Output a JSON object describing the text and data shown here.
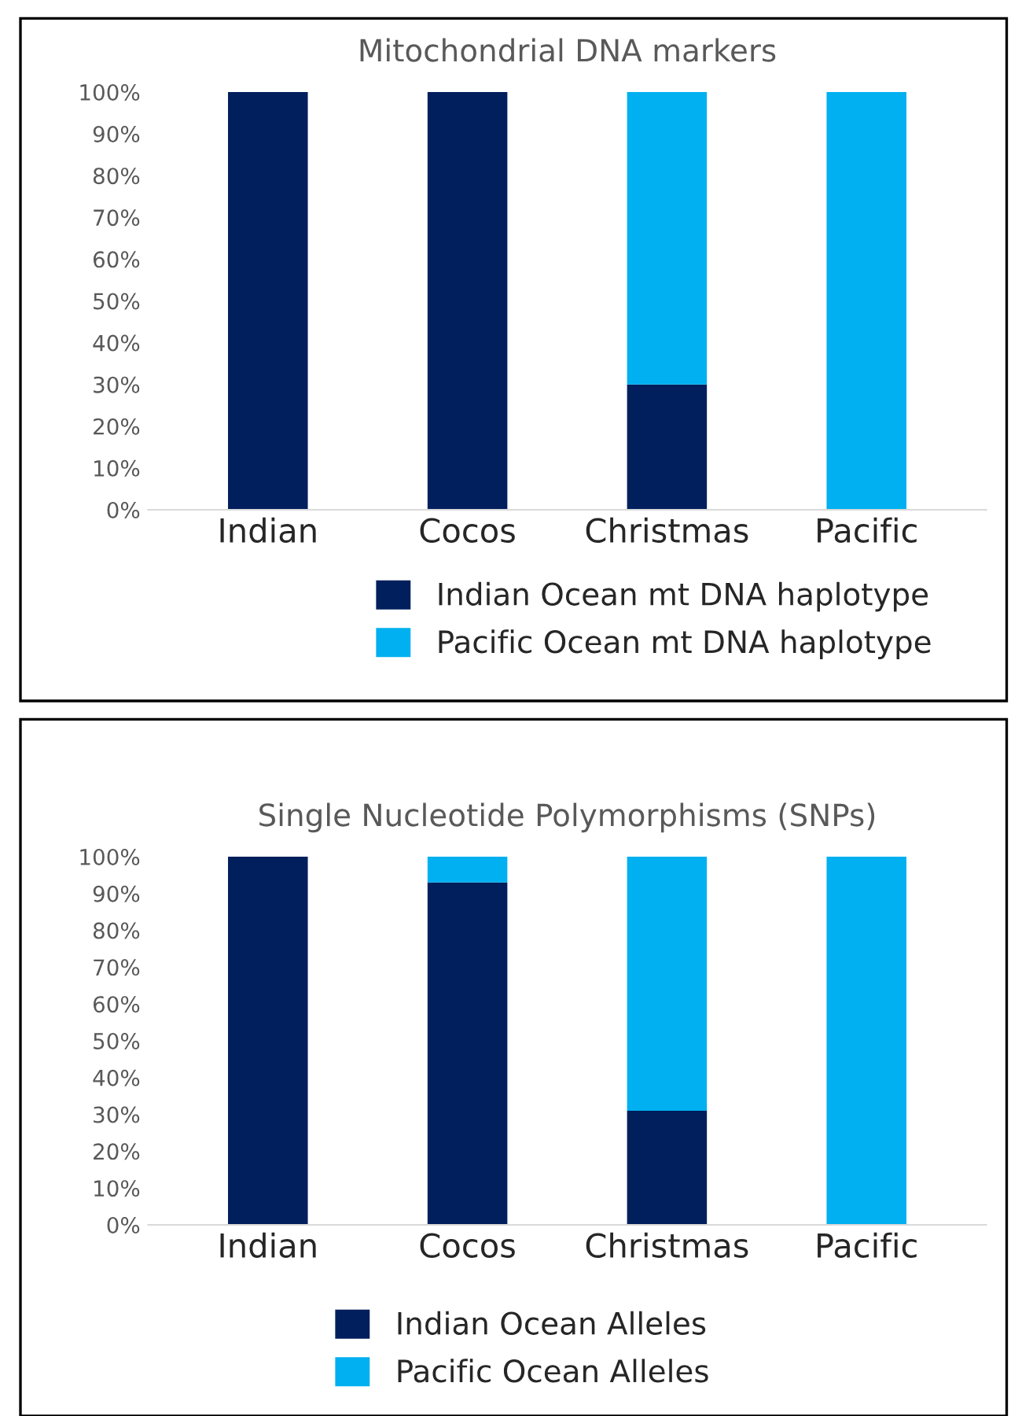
{
  "chart_data": [
    {
      "type": "bar",
      "title": "Mitochondrial DNA markers",
      "stacked": true,
      "categories": [
        "Indian",
        "Cocos",
        "Christmas",
        "Pacific"
      ],
      "series": [
        {
          "name": "Indian Ocean mt DNA haplotype",
          "color": "#001f5c",
          "values": [
            100,
            100,
            30,
            0
          ]
        },
        {
          "name": "Pacific Ocean mt DNA haplotype",
          "color": "#00b0f0",
          "values": [
            0,
            0,
            70,
            100
          ]
        }
      ],
      "ylim": [
        0,
        100
      ],
      "yticks": [
        {
          "value": 0,
          "label": "0%"
        },
        {
          "value": 10,
          "label": "10%"
        },
        {
          "value": 20,
          "label": "20%"
        },
        {
          "value": 30,
          "label": "30%"
        },
        {
          "value": 40,
          "label": "40%"
        },
        {
          "value": 50,
          "label": "50%"
        },
        {
          "value": 60,
          "label": "60%"
        },
        {
          "value": 70,
          "label": "70%"
        },
        {
          "value": 80,
          "label": "80%"
        },
        {
          "value": 90,
          "label": "90%"
        },
        {
          "value": 100,
          "label": "100%"
        }
      ],
      "legend": "bottom",
      "grid": false
    },
    {
      "type": "bar",
      "title": "Single Nucleotide Polymorphisms (SNPs)",
      "stacked": true,
      "categories": [
        "Indian",
        "Cocos",
        "Christmas",
        "Pacific"
      ],
      "series": [
        {
          "name": "Indian Ocean Alleles",
          "color": "#001f5c",
          "values": [
            100,
            93,
            31,
            0
          ]
        },
        {
          "name": "Pacific Ocean Alleles",
          "color": "#00b0f0",
          "values": [
            0,
            7,
            69,
            100
          ]
        }
      ],
      "ylim": [
        0,
        100
      ],
      "yticks": [
        {
          "value": 0,
          "label": "0%"
        },
        {
          "value": 10,
          "label": "10%"
        },
        {
          "value": 20,
          "label": "20%"
        },
        {
          "value": 30,
          "label": "30%"
        },
        {
          "value": 40,
          "label": "40%"
        },
        {
          "value": 50,
          "label": "50%"
        },
        {
          "value": 60,
          "label": "60%"
        },
        {
          "value": 70,
          "label": "70%"
        },
        {
          "value": 80,
          "label": "80%"
        },
        {
          "value": 90,
          "label": "90%"
        },
        {
          "value": 100,
          "label": "100%"
        }
      ],
      "legend": "bottom",
      "grid": false
    }
  ]
}
